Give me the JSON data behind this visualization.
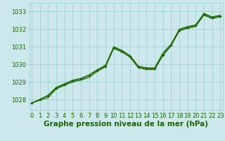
{
  "title": "Graphe pression niveau de la mer (hPa)",
  "xlabel_ticks": [
    0,
    1,
    2,
    3,
    4,
    5,
    6,
    7,
    8,
    9,
    10,
    11,
    12,
    13,
    14,
    15,
    16,
    17,
    18,
    19,
    20,
    21,
    22,
    23
  ],
  "ylim": [
    1027.4,
    1033.5
  ],
  "xlim": [
    -0.3,
    23.3
  ],
  "yticks": [
    1028,
    1029,
    1030,
    1031,
    1032,
    1033
  ],
  "background_color": "#cce8ec",
  "grid_color": "#99cccc",
  "line_color": "#1a6600",
  "marker_color": "#1a6600",
  "series_main": [
    1027.8,
    1028.0,
    1028.2,
    1028.65,
    1028.85,
    1029.05,
    1029.15,
    1029.35,
    1029.65,
    1029.9,
    1030.95,
    1030.75,
    1030.45,
    1029.85,
    1029.75,
    1029.75,
    1030.55,
    1031.1,
    1031.95,
    1032.1,
    1032.2,
    1032.85,
    1032.65,
    1032.75
  ],
  "series_hi": [
    1027.8,
    1028.0,
    1028.25,
    1028.7,
    1028.9,
    1029.1,
    1029.2,
    1029.4,
    1029.7,
    1029.95,
    1031.0,
    1030.8,
    1030.5,
    1029.9,
    1029.8,
    1029.8,
    1030.65,
    1031.15,
    1032.0,
    1032.15,
    1032.25,
    1032.9,
    1032.7,
    1032.8
  ],
  "series_lo": [
    1027.8,
    1027.95,
    1028.1,
    1028.6,
    1028.8,
    1029.0,
    1029.1,
    1029.25,
    1029.6,
    1029.85,
    1030.9,
    1030.7,
    1030.4,
    1029.8,
    1029.7,
    1029.7,
    1030.5,
    1031.05,
    1031.9,
    1032.05,
    1032.15,
    1032.8,
    1032.6,
    1032.7
  ],
  "title_fontsize": 7.5,
  "tick_fontsize": 6,
  "title_color": "#1a6600",
  "tick_color": "#1a6600"
}
